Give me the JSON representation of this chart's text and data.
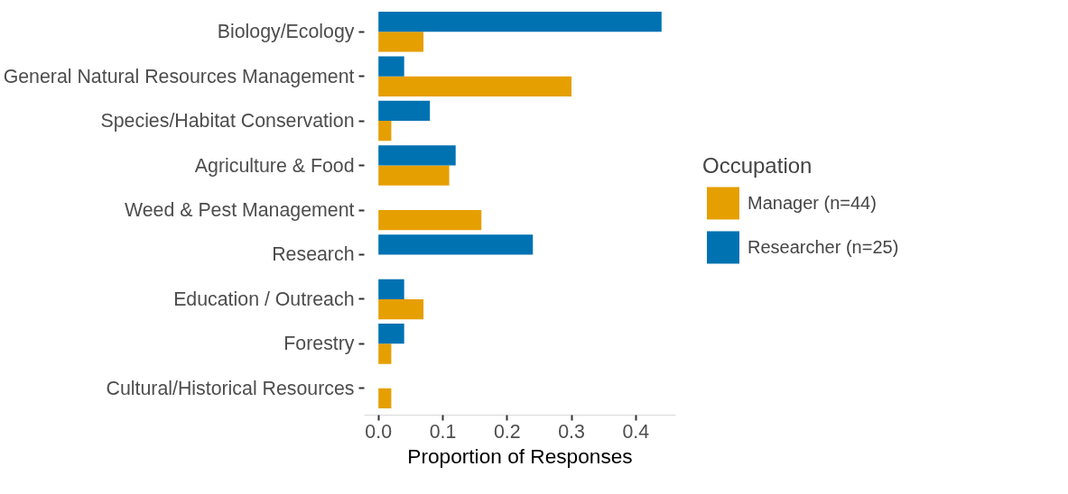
{
  "chart_data": {
    "type": "bar",
    "orientation": "horizontal",
    "xlabel": "Proportion of Responses",
    "legend_title": "Occupation",
    "legend": "right",
    "categories": [
      "Biology/Ecology",
      "General Natural Resources Management",
      "Species/Habitat Conservation",
      "Agriculture & Food",
      "Weed & Pest Management",
      "Research",
      "Education / Outreach",
      "Forestry",
      "Cultural/Historical Resources"
    ],
    "series": [
      {
        "name": "Manager (n=44)",
        "color": "#e69f00",
        "values": [
          0.07,
          0.3,
          0.02,
          0.11,
          0.16,
          null,
          0.07,
          0.02,
          0.02
        ]
      },
      {
        "name": "Researcher (n=25)",
        "color": "#0072b2",
        "values": [
          0.44,
          0.04,
          0.08,
          0.12,
          null,
          0.24,
          0.04,
          0.04,
          null
        ]
      }
    ],
    "xlim": [
      -0.022,
      0.462
    ],
    "xticks": [
      {
        "value": 0,
        "label": "0.0"
      },
      0.1,
      0.2,
      0.3,
      0.4
    ],
    "grid": false
  }
}
